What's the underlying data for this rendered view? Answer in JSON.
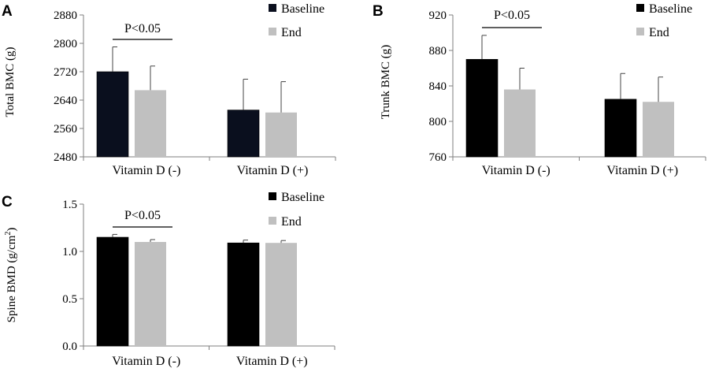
{
  "chart_data": [
    {
      "panel": "A",
      "type": "bar",
      "ylabel": "Total BMC (g)",
      "ylim": [
        2480,
        2880
      ],
      "yticks": [
        2480,
        2560,
        2640,
        2720,
        2800,
        2880
      ],
      "categories": [
        "Vitamin D (-)",
        "Vitamin D (+)"
      ],
      "series": [
        {
          "name": "Baseline",
          "color": "#0a0f1e",
          "values": [
            2720,
            2612
          ],
          "errors": [
            70,
            87
          ]
        },
        {
          "name": "End",
          "color": "#c0c0c0",
          "values": [
            2668,
            2605
          ],
          "errors": [
            68,
            87
          ]
        }
      ],
      "annotation": {
        "text": "P<0.05",
        "category_index": 0
      },
      "legend": "top-right"
    },
    {
      "panel": "B",
      "type": "bar",
      "ylabel": "Trunk BMC (g)",
      "ylim": [
        760,
        920
      ],
      "yticks": [
        760,
        800,
        840,
        880,
        920
      ],
      "categories": [
        "Vitamin D (-)",
        "Vitamin D (+)"
      ],
      "series": [
        {
          "name": "Baseline",
          "color": "#000000",
          "values": [
            870,
            825
          ],
          "errors": [
            27,
            29
          ]
        },
        {
          "name": "End",
          "color": "#c0c0c0",
          "values": [
            836,
            822
          ],
          "errors": [
            24,
            28
          ]
        }
      ],
      "annotation": {
        "text": "P<0.05",
        "category_index": 0
      },
      "legend": "top-right"
    },
    {
      "panel": "C",
      "type": "bar",
      "ylabel": "Spine BMD (g/cm2)",
      "ylabel_main": "Spine BMD (g/cm",
      "ylabel_sup": "2",
      "ylabel_end": ")",
      "ylim": [
        0,
        1.5
      ],
      "yticks": [
        "0.0",
        "0.5",
        "1.0",
        "1.5"
      ],
      "categories": [
        "Vitamin D (-)",
        "Vitamin D (+)"
      ],
      "series": [
        {
          "name": "Baseline",
          "color": "#000000",
          "values": [
            1.15,
            1.09
          ],
          "errors": [
            0.03,
            0.03
          ]
        },
        {
          "name": "End",
          "color": "#c0c0c0",
          "values": [
            1.1,
            1.09
          ],
          "errors": [
            0.025,
            0.025
          ]
        }
      ],
      "annotation": {
        "text": "P<0.05",
        "category_index": 0
      },
      "legend": "top-right"
    }
  ]
}
